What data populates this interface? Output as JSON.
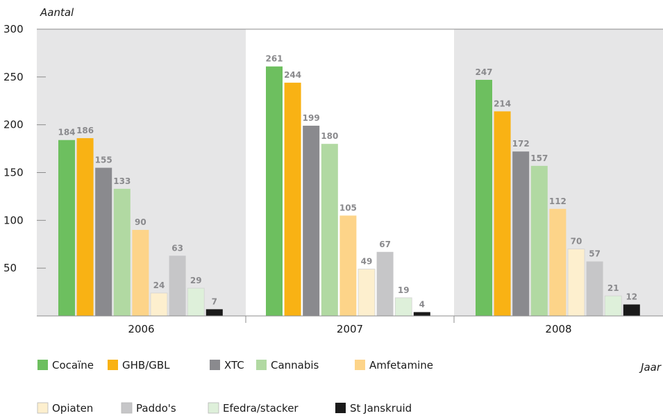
{
  "chart_data": {
    "type": "bar",
    "ylabel": "Aantal",
    "xlabel": "Jaar",
    "ylim": [
      0,
      300
    ],
    "yticks": [
      50,
      100,
      150,
      200,
      250,
      300
    ],
    "categories": [
      "2006",
      "2007",
      "2008"
    ],
    "grid": false,
    "legend_position": "bottom",
    "series": [
      {
        "name": "Cocaïne",
        "color": "#6dbf5f",
        "values": [
          184,
          261,
          247
        ]
      },
      {
        "name": "GHB/GBL",
        "color": "#f9b214",
        "values": [
          186,
          244,
          214
        ]
      },
      {
        "name": "XTC",
        "color": "#8a8a8e",
        "values": [
          155,
          199,
          172
        ]
      },
      {
        "name": "Cannabis",
        "color": "#b1d9a2",
        "values": [
          133,
          180,
          157
        ]
      },
      {
        "name": "Amfetamine",
        "color": "#fdd489",
        "values": [
          90,
          105,
          112
        ]
      },
      {
        "name": "Opiaten",
        "color": "#fdefce",
        "values": [
          24,
          49,
          70
        ]
      },
      {
        "name": "Paddo's",
        "color": "#c6c6c8",
        "values": [
          63,
          67,
          57
        ]
      },
      {
        "name": "Efedra/stacker",
        "color": "#def0da",
        "values": [
          29,
          19,
          21
        ]
      },
      {
        "name": "St Janskruid",
        "color": "#1a1a1a",
        "values": [
          7,
          4,
          12
        ]
      }
    ],
    "panel_colors": [
      "#e6e6e7",
      "#ffffff",
      "#e6e6e7"
    ]
  }
}
